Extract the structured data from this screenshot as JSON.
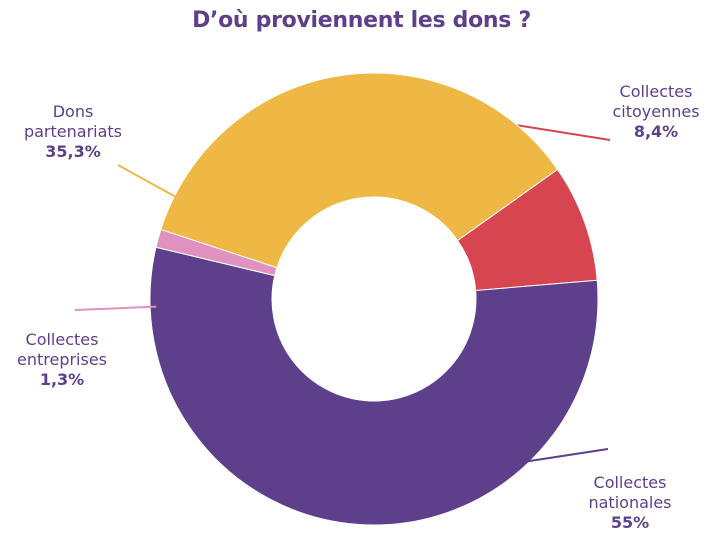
{
  "chart_data": {
    "type": "pie",
    "donut": true,
    "title": "D’où proviennent les dons ?",
    "slices": [
      {
        "name_lines": [
          "Collectes",
          "citoyennes"
        ],
        "value_label": "8,4%",
        "value": 8.4,
        "color": "#d64550"
      },
      {
        "name_lines": [
          "Collectes",
          "nationales"
        ],
        "value_label": "55%",
        "value": 55.0,
        "color": "#5e3f8c"
      },
      {
        "name_lines": [
          "Collectes",
          "entreprises"
        ],
        "value_label": "1,3%",
        "value": 1.3,
        "color": "#e091c0"
      },
      {
        "name_lines": [
          "Dons",
          "partenariats"
        ],
        "value_label": "35,3%",
        "value": 35.3,
        "color": "#efb845"
      }
    ],
    "text_color": "#5e3f8c"
  }
}
